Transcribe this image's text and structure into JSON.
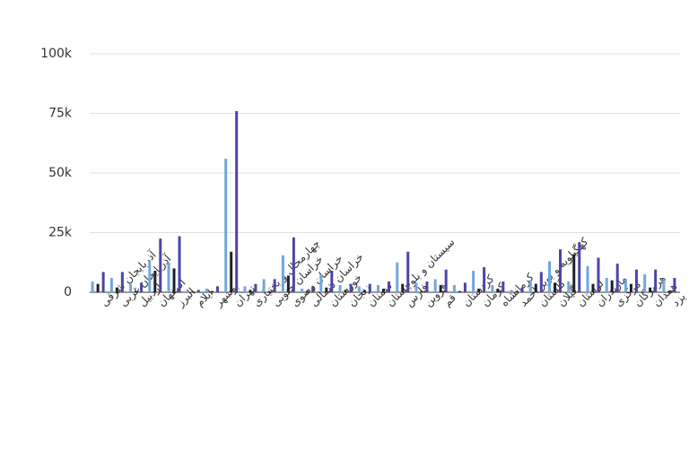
{
  "chart_data": {
    "type": "bar",
    "categories": [
      "آذربایجان شرقی",
      "آذربایجان غربی",
      "اردبیل",
      "اصفهان",
      "البرز",
      "ایلام",
      "بوشهر",
      "تهران",
      "چهارمحال و بختیاری",
      "خراسان جنوبی",
      "خراسان رضوی",
      "خراسان شمالی",
      "خوزستان",
      "زنجان",
      "سمنان",
      "سیستان و بلوچستان",
      "فارس",
      "قزوین",
      "قم",
      "کردستان",
      "کرمان",
      "کرمانشاه",
      "کهگیلویه و بویر احمد",
      "گلستان",
      "گیلان",
      "لرستان",
      "مازندران",
      "مرکزی",
      "هرمزگان",
      "همدان",
      "یزد"
    ],
    "series": [
      {
        "color": "#6fa8dc",
        "values": [
          4500,
          6000,
          3500,
          13000,
          12500,
          500,
          1500,
          56000,
          2500,
          5500,
          15500,
          1500,
          7500,
          3000,
          2500,
          3000,
          12500,
          4000,
          5500,
          3000,
          9000,
          3000,
          1000,
          5000,
          13000,
          4500,
          11000,
          6000,
          5500,
          7500,
          5000
        ]
      },
      {
        "color": "#1f1f2e",
        "values": [
          3500,
          2000,
          500,
          9000,
          10000,
          300,
          500,
          17000,
          1000,
          500,
          7000,
          500,
          2000,
          1000,
          1000,
          1500,
          3500,
          500,
          3000,
          500,
          1500,
          1500,
          500,
          3500,
          4000,
          16000,
          3500,
          5000,
          3500,
          2000,
          500
        ]
      },
      {
        "color": "#4b45a8",
        "values": [
          8500,
          8500,
          4000,
          22500,
          23500,
          1000,
          2500,
          76000,
          3500,
          5500,
          23000,
          2500,
          9000,
          3500,
          3500,
          4500,
          17000,
          4500,
          9500,
          4000,
          10500,
          4500,
          2000,
          8500,
          18000,
          21000,
          14500,
          12000,
          9500,
          9500,
          6000
        ]
      }
    ],
    "ylim": [
      0,
      100000
    ],
    "yticks": [
      0,
      {
        "value": 25000,
        "label": "25k"
      },
      {
        "value": 50000,
        "label": "50k"
      },
      {
        "value": 75000,
        "label": "75k"
      },
      {
        "value": 100000,
        "label": "100k"
      }
    ],
    "grid": true
  }
}
